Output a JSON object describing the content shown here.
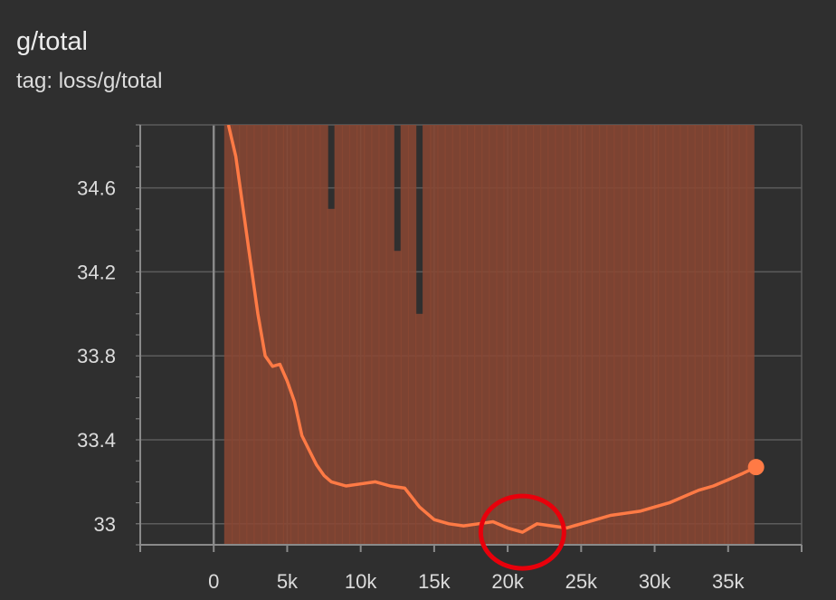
{
  "card": {
    "title": "g/total",
    "subtitle": "tag: loss/g/total"
  },
  "colors": {
    "background": "#2f2f2f",
    "grid": "#5c5c5c",
    "axis": "#8a8a8a",
    "smoothed_line": "#ff7a45",
    "raw_values": "#8a4632",
    "highlight_circle": "#e8000b"
  },
  "chart_data": {
    "type": "line",
    "title": "g/total",
    "subtitle": "tag: loss/g/total",
    "xlabel": "",
    "ylabel": "",
    "xlim": [
      -5000,
      40000
    ],
    "ylim": [
      32.9,
      34.9
    ],
    "x_ticks": [
      0,
      5000,
      10000,
      15000,
      20000,
      25000,
      30000,
      35000
    ],
    "x_tick_labels": [
      "0",
      "5k",
      "10k",
      "15k",
      "20k",
      "25k",
      "30k",
      "35k"
    ],
    "y_ticks": [
      33,
      33.4,
      33.8,
      34.2,
      34.6
    ],
    "y_tick_labels": [
      "33",
      "33.4",
      "33.8",
      "34.2",
      "34.6"
    ],
    "grid": true,
    "legend": "none",
    "series": [
      {
        "role": "smoothed",
        "x": [
          1000,
          1500,
          2000,
          2500,
          3000,
          3500,
          4000,
          4500,
          5000,
          5500,
          6000,
          6500,
          7000,
          7500,
          8000,
          9000,
          10000,
          11000,
          12000,
          13000,
          14000,
          15000,
          16000,
          17000,
          18000,
          19000,
          20000,
          21000,
          22000,
          23000,
          24000,
          25000,
          26000,
          27000,
          28000,
          29000,
          30000,
          31000,
          32000,
          33000,
          34000,
          35000,
          36000,
          36900
        ],
        "y": [
          34.9,
          34.75,
          34.5,
          34.25,
          34.0,
          33.8,
          33.75,
          33.76,
          33.68,
          33.58,
          33.42,
          33.35,
          33.28,
          33.23,
          33.2,
          33.18,
          33.19,
          33.2,
          33.18,
          33.17,
          33.08,
          33.02,
          33.0,
          32.99,
          33.0,
          33.01,
          32.98,
          32.96,
          33.0,
          32.99,
          32.98,
          33.0,
          33.02,
          33.04,
          33.05,
          33.06,
          33.08,
          33.1,
          33.13,
          33.16,
          33.18,
          33.21,
          33.24,
          33.27
        ]
      },
      {
        "role": "raw",
        "x": [
          1000,
          1500,
          2000,
          2500,
          3000,
          3500,
          4000,
          4500,
          5000,
          5500,
          6000,
          6500,
          7000,
          7500,
          8000,
          8500,
          9000,
          9500,
          10000,
          10500,
          11000,
          11500,
          12000,
          12500,
          13000,
          13500,
          14000,
          14500,
          15000,
          15500,
          16000,
          16500,
          17000,
          17500,
          18000,
          18500,
          19000,
          19500,
          20000,
          20500,
          21000,
          21500,
          22000,
          22500,
          23000,
          23500,
          24000,
          24500,
          25000,
          25500,
          26000,
          26500,
          27000,
          27500,
          28000,
          28500,
          29000,
          29500,
          30000,
          30500,
          31000,
          31500,
          32000,
          32500,
          33000,
          33500,
          34000,
          34500,
          35000,
          35500,
          36000,
          36500
        ],
        "y_high": [
          34.9,
          34.9,
          34.9,
          34.9,
          34.9,
          34.9,
          34.9,
          34.9,
          34.9,
          34.9,
          34.9,
          34.9,
          34.9,
          34.9,
          34.5,
          34.9,
          34.9,
          34.9,
          34.9,
          34.9,
          34.9,
          34.9,
          34.9,
          34.3,
          34.9,
          34.9,
          34.0,
          34.9,
          34.9,
          34.9,
          34.9,
          34.9,
          34.9,
          34.9,
          34.9,
          34.9,
          34.9,
          34.9,
          34.9,
          34.9,
          34.9,
          34.9,
          34.9,
          34.9,
          34.9,
          34.9,
          34.9,
          34.9,
          34.9,
          34.9,
          34.9,
          34.9,
          34.9,
          34.9,
          34.9,
          34.9,
          34.9,
          34.9,
          34.9,
          34.9,
          34.9,
          34.9,
          34.9,
          34.9,
          34.9,
          34.9,
          34.9,
          34.9,
          34.9,
          34.9,
          34.9,
          34.9
        ],
        "y_low": [
          32.9,
          32.9,
          32.9,
          32.9,
          32.9,
          32.9,
          32.9,
          32.9,
          32.9,
          32.9,
          32.9,
          32.9,
          32.9,
          32.9,
          32.9,
          32.9,
          32.9,
          32.9,
          32.9,
          32.9,
          32.9,
          32.9,
          32.9,
          32.9,
          32.9,
          32.9,
          32.9,
          32.9,
          32.9,
          32.9,
          32.9,
          32.9,
          32.9,
          32.9,
          32.9,
          32.9,
          32.9,
          32.9,
          32.9,
          32.9,
          32.9,
          32.9,
          32.9,
          32.9,
          32.9,
          32.9,
          32.9,
          32.9,
          32.9,
          32.9,
          32.9,
          32.9,
          32.9,
          32.9,
          32.9,
          32.9,
          32.9,
          32.9,
          32.9,
          32.9,
          32.9,
          32.9,
          32.9,
          32.9,
          32.9,
          32.9,
          32.9,
          32.9,
          32.9,
          32.9,
          32.9,
          32.9
        ]
      }
    ],
    "last_point": {
      "x": 36900,
      "y": 33.27
    },
    "annotation": {
      "type": "circle",
      "center_x": 21000,
      "center_y": 32.96
    }
  }
}
